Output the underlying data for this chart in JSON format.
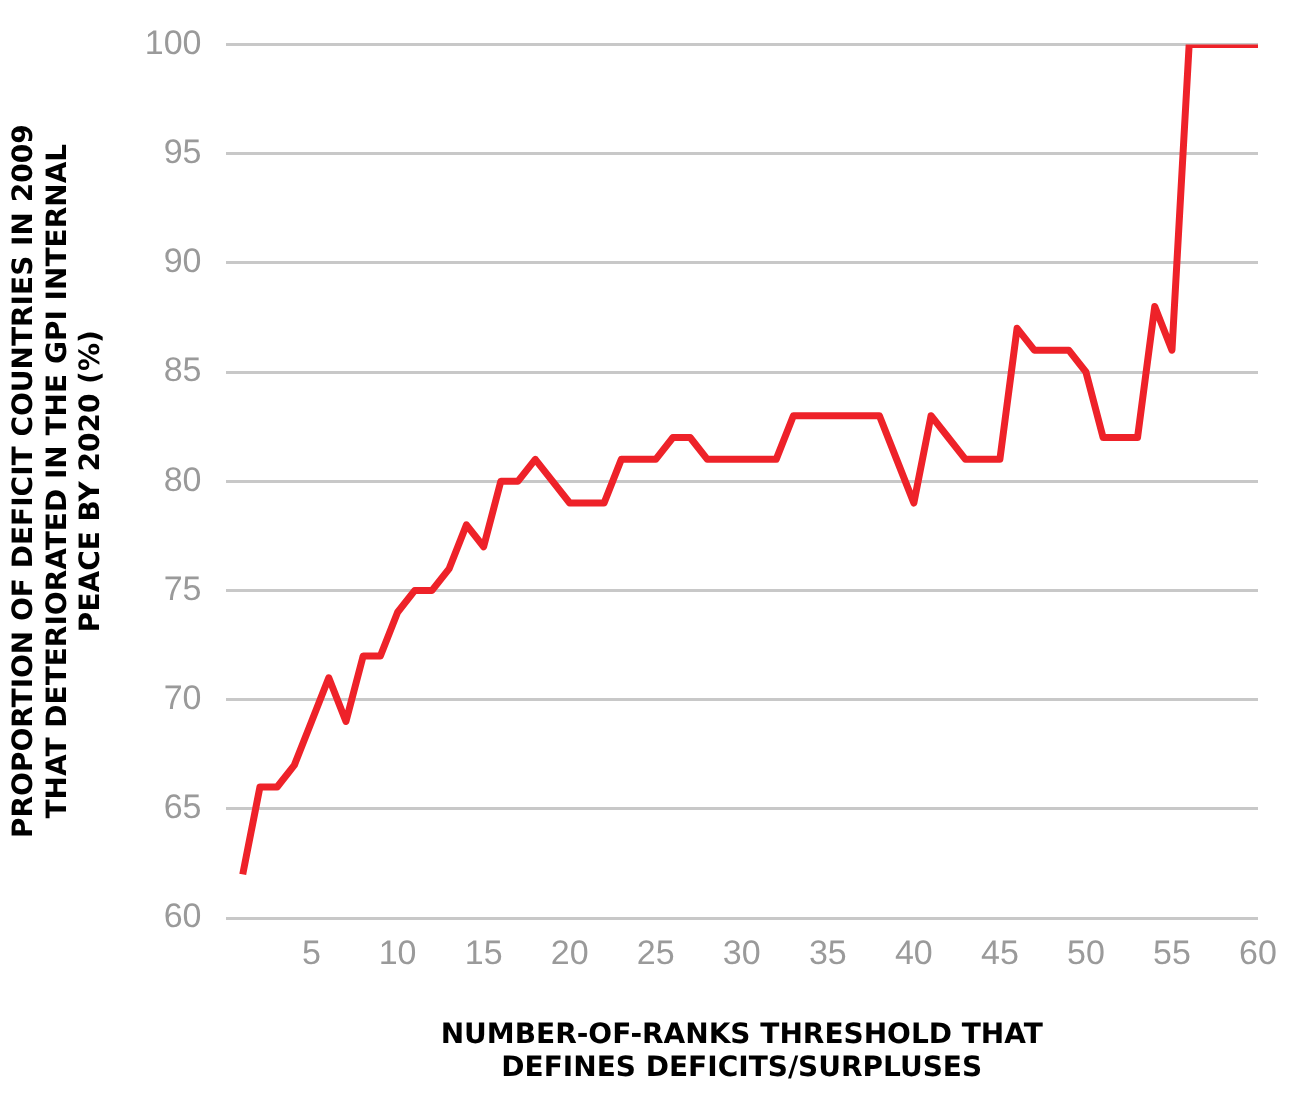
{
  "chart_data": {
    "type": "line",
    "xlabel": "NUMBER-OF-RANKS THRESHOLD THAT\nDEFINES DEFICITS/SURPLUSES",
    "ylabel": "PROPORTION OF DEFICIT COUNTRIES IN 2009\nTHAT DETERIORATED IN THE GPI INTERNAL\nPEACE BY 2020 (%)",
    "x": [
      1,
      2,
      3,
      4,
      5,
      6,
      7,
      8,
      9,
      10,
      11,
      12,
      13,
      14,
      15,
      16,
      17,
      18,
      19,
      20,
      21,
      22,
      23,
      24,
      25,
      26,
      27,
      28,
      29,
      30,
      31,
      32,
      33,
      34,
      35,
      36,
      37,
      38,
      39,
      40,
      41,
      42,
      43,
      44,
      45,
      46,
      47,
      48,
      49,
      50,
      51,
      52,
      53,
      54,
      55,
      56,
      57,
      58,
      59,
      60
    ],
    "series": [
      {
        "color": "#ee2229",
        "values": [
          62,
          66,
          66,
          67,
          69,
          71,
          69,
          72,
          72,
          74,
          75,
          75,
          76,
          78,
          77,
          80,
          80,
          81,
          80,
          79,
          79,
          79,
          81,
          81,
          81,
          82,
          82,
          81,
          81,
          81,
          81,
          81,
          83,
          83,
          83,
          83,
          83,
          83,
          81,
          79,
          83,
          82,
          81,
          81,
          81,
          87,
          86,
          86,
          86,
          85,
          82,
          82,
          82,
          88,
          86,
          100,
          100,
          100,
          100,
          100
        ]
      }
    ],
    "xlim": [
      0,
      60
    ],
    "xticks": [
      5,
      10,
      15,
      20,
      25,
      30,
      35,
      40,
      45,
      50,
      55,
      60
    ],
    "ylim": [
      60,
      100
    ],
    "yticks": [
      60,
      65,
      70,
      75,
      80,
      85,
      90,
      95,
      100
    ],
    "grid": "y",
    "legend": false,
    "marker": "none",
    "line_style": "solid"
  }
}
